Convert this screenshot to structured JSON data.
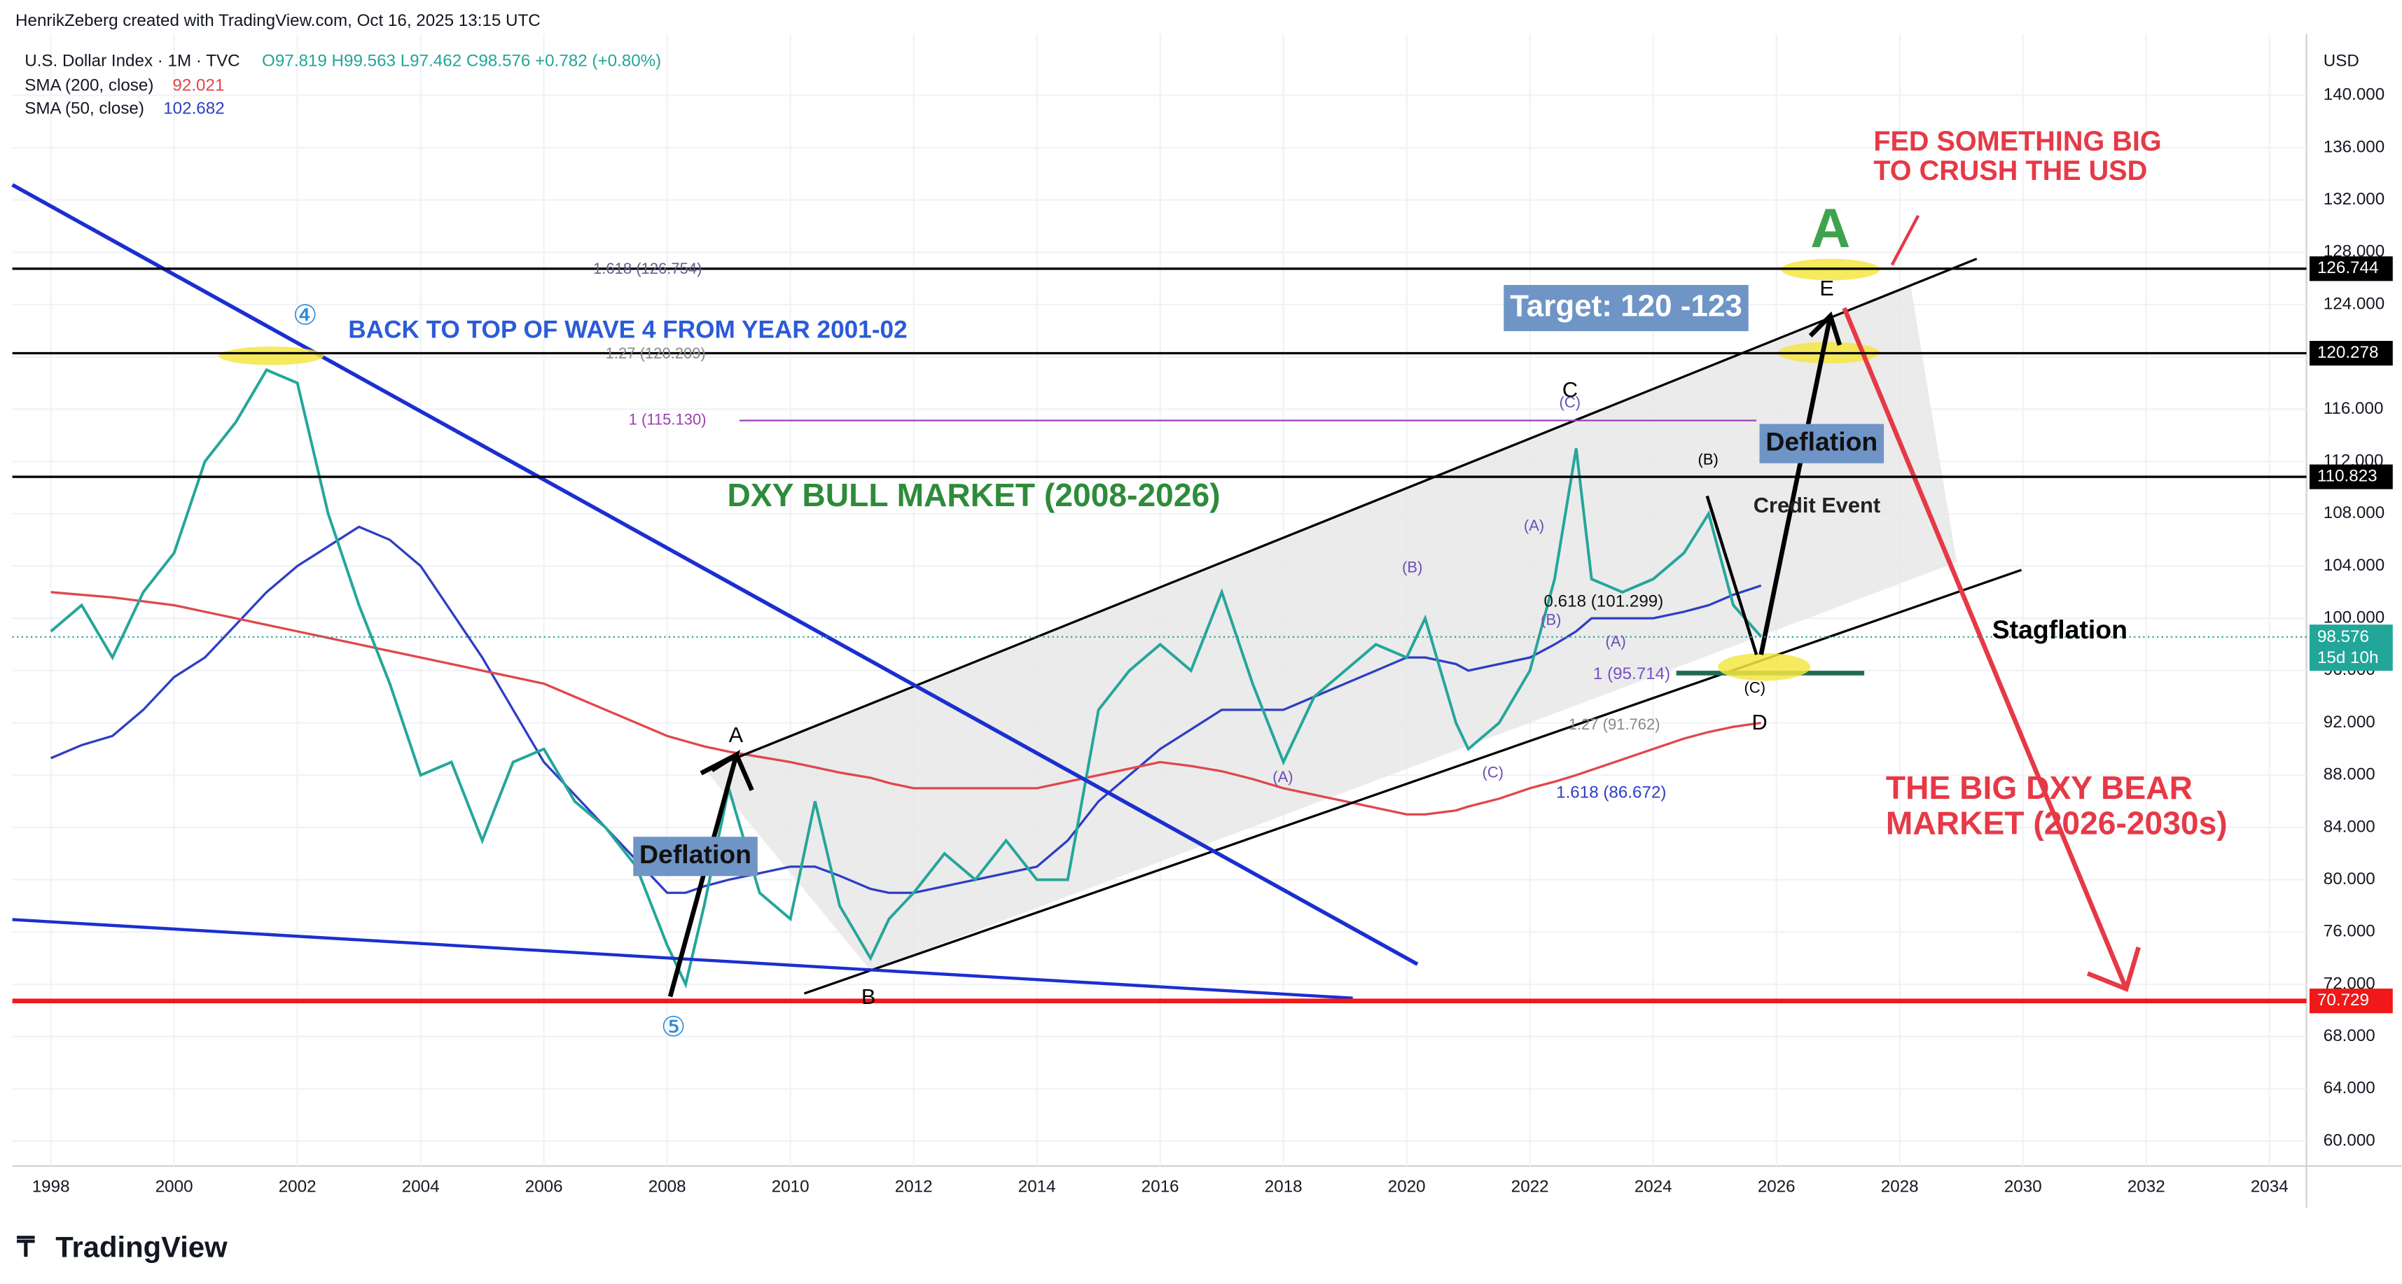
{
  "header": {
    "credit": "HenrikZeberg created with TradingView.com, Oct 16, 2025 13:15 UTC",
    "ohlc": "O97.819 H99.563 L97.462 C98.576 +0.782 (+0.80%)",
    "currency": "USD",
    "countdown": "15d 10h",
    "footer": "TradingView"
  },
  "chart_data": {
    "type": "line",
    "x": [
      1998.0,
      1998.5,
      1999.0,
      1999.5,
      2000.0,
      2000.5,
      2001.0,
      2001.5,
      2002.0,
      2002.5,
      2003.0,
      2003.5,
      2004.0,
      2004.5,
      2005.0,
      2005.5,
      2006.0,
      2006.5,
      2007.0,
      2007.5,
      2008.0,
      2008.3,
      2008.6,
      2009.0,
      2009.5,
      2010.0,
      2010.4,
      2010.8,
      2011.3,
      2011.6,
      2012.0,
      2012.5,
      2013.0,
      2013.5,
      2014.0,
      2014.5,
      2015.0,
      2015.5,
      2016.0,
      2016.5,
      2017.0,
      2017.5,
      2018.0,
      2018.5,
      2019.0,
      2019.5,
      2020.0,
      2020.3,
      2020.8,
      2021.0,
      2021.5,
      2022.0,
      2022.4,
      2022.75,
      2023.0,
      2023.5,
      2024.0,
      2024.5,
      2024.9,
      2025.3,
      2025.75
    ],
    "series": [
      {
        "name": "U.S. Dollar Index · 1M · TVC",
        "color": "#26a69a",
        "values": [
          99,
          101,
          97,
          102,
          105,
          112,
          115,
          119,
          118,
          108,
          101,
          95,
          88,
          89,
          83,
          89,
          90,
          86,
          84,
          81,
          75,
          72,
          78,
          87,
          79,
          77,
          86,
          78,
          74,
          77,
          79,
          82,
          80,
          83,
          80,
          80,
          93,
          96,
          98,
          96,
          102,
          95,
          89,
          94,
          96,
          98,
          97,
          100,
          92,
          90,
          92,
          96,
          103,
          113,
          103,
          102,
          103,
          105,
          108,
          101,
          98.6
        ]
      },
      {
        "name": "SMA (200, close)",
        "color": "#e0474c",
        "last": 92.021,
        "values": [
          102,
          101.8,
          101.6,
          101.3,
          101,
          100.5,
          100,
          99.5,
          99,
          98.5,
          98,
          97.5,
          97,
          96.5,
          96,
          95.5,
          95,
          94,
          93,
          92,
          91,
          90.6,
          90.2,
          89.8,
          89.4,
          89,
          88.6,
          88.2,
          87.8,
          87.4,
          87,
          87,
          87,
          87,
          87,
          87.5,
          88,
          88.5,
          89,
          88.7,
          88.3,
          87.7,
          87,
          86.5,
          86,
          85.5,
          85,
          85,
          85.3,
          85.6,
          86.2,
          87,
          87.5,
          88,
          88.4,
          89.2,
          90,
          90.8,
          91.3,
          91.7,
          92
        ]
      },
      {
        "name": "SMA (50, close)",
        "color": "#2e3ec4",
        "last": 102.682,
        "values": [
          89.3,
          90.3,
          91,
          93,
          95.5,
          97,
          99.5,
          102,
          104,
          105.5,
          107,
          106,
          104,
          100.5,
          97,
          93,
          89,
          86.5,
          84,
          81.5,
          79,
          79,
          79.5,
          80,
          80.5,
          81,
          81,
          80.3,
          79.3,
          79,
          79,
          79.5,
          80,
          80.5,
          81,
          83,
          86,
          88,
          90,
          91.5,
          93,
          93,
          93,
          94,
          95,
          96,
          97,
          97,
          96.5,
          96,
          96.5,
          97,
          98,
          99,
          100,
          100,
          100,
          100.5,
          101,
          101.8,
          102.5
        ]
      }
    ],
    "levels": [
      {
        "value": 126.744,
        "color": "#000000"
      },
      {
        "value": 120.278,
        "color": "#000000"
      },
      {
        "value": 110.823,
        "color": "#000000"
      },
      {
        "value": 70.729,
        "color": "#f01818"
      }
    ],
    "price": {
      "value": 98.576,
      "color": "#22a69a"
    },
    "xlim": [
      1997.375,
      2034.6
    ],
    "xticks": [
      1998,
      2000,
      2002,
      2004,
      2006,
      2008,
      2010,
      2012,
      2014,
      2016,
      2018,
      2020,
      2022,
      2024,
      2026,
      2028,
      2030,
      2032,
      2034
    ],
    "ylim": [
      58.1,
      144
    ],
    "yticks": [
      {
        "value": 60,
        "label": "60.000"
      },
      {
        "value": 64,
        "label": "64.000"
      },
      {
        "value": 68,
        "label": "68.000"
      },
      {
        "value": 72,
        "label": "72.000"
      },
      {
        "value": 76,
        "label": "76.000"
      },
      {
        "value": 80,
        "label": "80.000"
      },
      {
        "value": 84,
        "label": "84.000"
      },
      {
        "value": 88,
        "label": "88.000"
      },
      {
        "value": 92,
        "label": "92.000"
      },
      {
        "value": 96,
        "label": "96.000"
      },
      {
        "value": 100,
        "label": "100.000"
      },
      {
        "value": 104,
        "label": "104.000"
      },
      {
        "value": 108,
        "label": "108.000"
      },
      {
        "value": 112,
        "label": "112.000"
      },
      {
        "value": 116,
        "label": "116.000"
      },
      {
        "value": 120,
        "label": "120.000"
      },
      {
        "value": 124,
        "label": "124.000"
      },
      {
        "value": 128,
        "label": "128.000"
      },
      {
        "value": 132,
        "label": "132.000"
      },
      {
        "value": 136,
        "label": "136.000"
      },
      {
        "value": 140,
        "label": "140.000"
      }
    ],
    "grid": true,
    "annotations": [
      "FED SOMETHING BIG",
      "TO CRUSH THE USD",
      "A",
      "Target: 120 -123",
      "E",
      "BACK TO TOP OF WAVE 4 FROM YEAR 2001-02",
      "④",
      "1.618 (126.754)",
      "1.27 (120.209)",
      "C",
      "1 (115.130)",
      "Deflation",
      "(B)",
      "DXY BULL MARKET (2008-2026)",
      "Credit Event",
      "0.618 (101.299)",
      "Stagflation",
      "1 (95.714)",
      "(C)",
      "D",
      "1.27 (91.762)",
      "A",
      "1.618 (86.672)",
      "THE BIG DXY BEAR",
      "MARKET (2026-2030s)",
      "Deflation",
      "B",
      "⑤",
      "(A)",
      "(B)",
      "(C)",
      "(A)",
      "(C)",
      "(B)",
      "(A)"
    ]
  }
}
